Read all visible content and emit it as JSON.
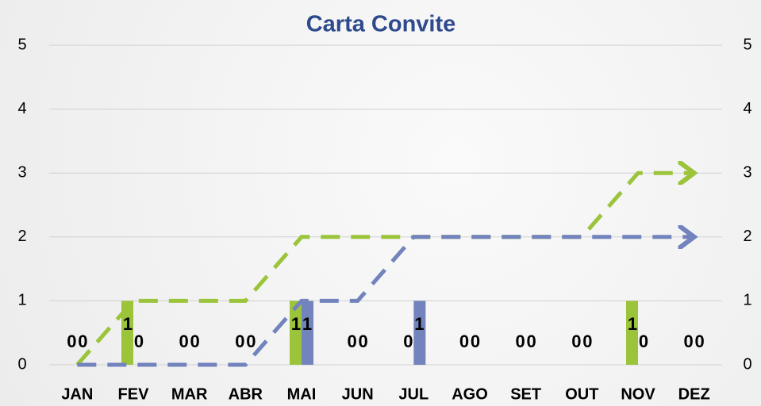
{
  "chart_data": {
    "type": "combo",
    "title": "Carta Convite",
    "categories": [
      "JAN",
      "FEV",
      "MAR",
      "ABR",
      "MAI",
      "JUN",
      "JUL",
      "AGO",
      "SET",
      "OUT",
      "NOV",
      "DEZ"
    ],
    "series": [
      {
        "kind": "bar",
        "color": "#9bc43a",
        "values": [
          0,
          1,
          0,
          0,
          1,
          0,
          0,
          0,
          0,
          0,
          1,
          0
        ]
      },
      {
        "kind": "bar",
        "color": "#7283bd",
        "values": [
          0,
          0,
          0,
          0,
          1,
          0,
          1,
          0,
          0,
          0,
          0,
          0
        ]
      },
      {
        "kind": "line",
        "color": "#9bc43a",
        "values": [
          0,
          1,
          1,
          1,
          2,
          2,
          2,
          2,
          2,
          2,
          3,
          3
        ]
      },
      {
        "kind": "line",
        "color": "#7283bd",
        "values": [
          0,
          0,
          0,
          0,
          1,
          1,
          2,
          2,
          2,
          2,
          2,
          2
        ]
      }
    ],
    "ylim": [
      0,
      5
    ],
    "yticks": [
      0,
      1,
      2,
      3,
      4,
      5
    ],
    "y2lim": [
      0,
      5
    ],
    "y2ticks": [
      0,
      1,
      2,
      3,
      4,
      5
    ],
    "grid": true
  }
}
